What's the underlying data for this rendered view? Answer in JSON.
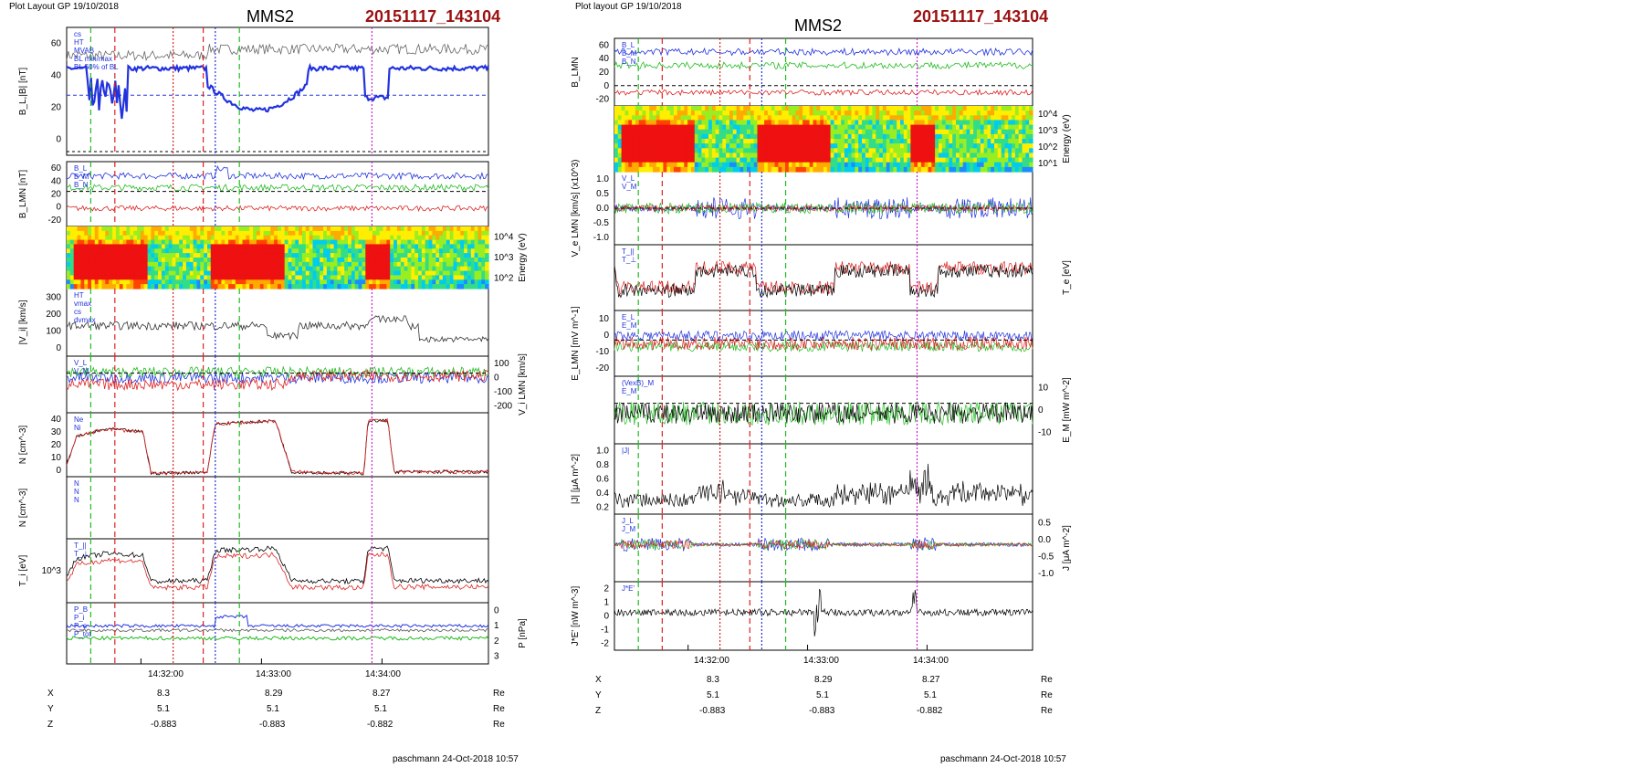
{
  "left_figure": {
    "layout_label": "Plot Layout GP 19/10/2018",
    "spacecraft": "MMS2",
    "run_id": "20151117_143104",
    "footer": "paschmann 24-Oct-2018 10:57",
    "time_ticks": [
      "14:32:00",
      "14:33:00",
      "14:34:00"
    ],
    "ephemeris": {
      "rows": [
        {
          "label": "X",
          "values": [
            "8.3",
            "8.29",
            "8.27"
          ],
          "unit": "Re"
        },
        {
          "label": "Y",
          "values": [
            "5.1",
            "5.1",
            "5.1"
          ],
          "unit": "Re"
        },
        {
          "label": "Z",
          "values": [
            "-0.883",
            "-0.883",
            "-0.882"
          ],
          "unit": "Re"
        }
      ]
    },
    "panels": [
      {
        "ylabel": "B_L,|B| [nT]",
        "ticks": [
          "0",
          "20",
          "40",
          "60"
        ],
        "legend": [
          "cs",
          "HT",
          "MVAB",
          "BL min/max",
          "BL 50% of BL"
        ]
      },
      {
        "ylabel": "B_LMN [nT]",
        "ticks": [
          "-20",
          "0",
          "20",
          "40",
          "60"
        ],
        "legend": [
          "B_L",
          "B_M",
          "B_N"
        ]
      },
      {
        "ylabel": "Energy (eV)",
        "ticks_right": [
          "10^4",
          "10^3",
          "10^2"
        ]
      },
      {
        "ylabel": "|V_i| [km/s]",
        "ticks": [
          "0",
          "100",
          "200",
          "300"
        ],
        "legend": [
          "HT",
          "vmax",
          "cs",
          "dvmax"
        ]
      },
      {
        "ylabel": "V_i LMN [km/s]",
        "ticks_right": [
          "100",
          "0",
          "-100",
          "-200"
        ],
        "legend": [
          "V_L",
          "V_M"
        ]
      },
      {
        "ylabel": "N [cm^-3]",
        "ticks": [
          "0",
          "10",
          "20",
          "30",
          "40"
        ],
        "legend": [
          "Ne",
          "Ni"
        ]
      },
      {
        "ylabel": "N [cm^-3]",
        "legend": [
          "N",
          "N",
          "N"
        ]
      },
      {
        "ylabel": "T_i [eV]",
        "ticks": [
          "10^3"
        ],
        "legend": [
          "T_||",
          "T_⊥"
        ]
      },
      {
        "ylabel": "P [nPa]",
        "ticks_right": [
          "0",
          "1",
          "2",
          "3"
        ],
        "legend": [
          "P_B",
          "P_i",
          "P_e",
          "P_tot"
        ]
      }
    ]
  },
  "right_figure": {
    "layout_label": "Plot layout GP 19/10/2018",
    "spacecraft": "MMS2",
    "run_id": "20151117_143104",
    "footer": "paschmann 24-Oct-2018 10:57",
    "time_ticks": [
      "14:32:00",
      "14:33:00",
      "14:34:00"
    ],
    "ephemeris": {
      "rows": [
        {
          "label": "X",
          "values": [
            "8.3",
            "8.29",
            "8.27"
          ],
          "unit": "Re"
        },
        {
          "label": "Y",
          "values": [
            "5.1",
            "5.1",
            "5.1"
          ],
          "unit": "Re"
        },
        {
          "label": "Z",
          "values": [
            "-0.883",
            "-0.883",
            "-0.882"
          ],
          "unit": "Re"
        }
      ]
    },
    "panels": [
      {
        "ylabel": "B_LMN",
        "ticks": [
          "-20",
          "0",
          "20",
          "40",
          "60"
        ],
        "legend": [
          "B_L",
          "B_M",
          "B_N"
        ]
      },
      {
        "ylabel": "Energy (eV)",
        "ticks_right": [
          "10^4",
          "10^3",
          "10^2",
          "10^1"
        ]
      },
      {
        "ylabel": "V_e LMN [km/s] (x10^3)",
        "ticks": [
          "-1.0",
          "-0.5",
          "0.0",
          "0.5",
          "1.0"
        ],
        "legend": [
          "V_L",
          "V_M"
        ]
      },
      {
        "ylabel": "T_e [eV]",
        "legend": [
          "T_||",
          "T_⊥"
        ]
      },
      {
        "ylabel": "E_LMN [mV m^-1]",
        "ticks": [
          "-20",
          "-10",
          "0",
          "10"
        ],
        "legend": [
          "E_L",
          "E_M"
        ]
      },
      {
        "ylabel": "E_M [mW m^-2]",
        "ticks_right": [
          "10",
          "0",
          "-10"
        ],
        "legend": [
          "(VexB)_M",
          "E_M"
        ]
      },
      {
        "ylabel": "|J| [μA m^-2]",
        "ticks": [
          "0.2",
          "0.4",
          "0.6",
          "0.8",
          "1.0"
        ],
        "legend": [
          "|J|"
        ]
      },
      {
        "ylabel": "J [μA m^-2]",
        "ticks_right": [
          "0.5",
          "0.0",
          "-0.5",
          "-1.0"
        ],
        "legend": [
          "J_L",
          "J_M"
        ]
      },
      {
        "ylabel": "J*E' [nW m^-3]",
        "ticks": [
          "-2",
          "-1",
          "0",
          "1",
          "2"
        ],
        "legend": [
          "J*E'"
        ]
      }
    ]
  },
  "chart_data": [
    {
      "type": "line",
      "title": "MMS2 20151117_143104",
      "time_ticks": [
        "14:32:00",
        "14:33:00",
        "14:34:00"
      ],
      "time_range_s": [
        0,
        210
      ],
      "tick_seconds": [
        37,
        97,
        157
      ],
      "series_colors": {
        "L": "#2233dd",
        "M": "#22bb22",
        "N": "#dd2222",
        "total": "#666666",
        "black": "#000000"
      },
      "markers": [
        {
          "t": 12,
          "color": "#22bb22",
          "style": "dash"
        },
        {
          "t": 24,
          "color": "#dd2222",
          "style": "dash"
        },
        {
          "t": 53,
          "color": "#dd2222",
          "style": "dot"
        },
        {
          "t": 68,
          "color": "#dd2222",
          "style": "dash"
        },
        {
          "t": 74,
          "color": "#2233dd",
          "style": "dot"
        },
        {
          "t": 86,
          "color": "#22bb22",
          "style": "dash"
        },
        {
          "t": 152,
          "color": "#cc22cc",
          "style": "dot"
        }
      ],
      "density_profile": {
        "t": [
          0,
          5,
          20,
          38,
          42,
          70,
          74,
          104,
          112,
          148,
          150,
          160,
          163,
          210
        ],
        "values": [
          8,
          25,
          30,
          28,
          2,
          3,
          33,
          35,
          3,
          2,
          35,
          35,
          3,
          3
        ]
      }
    }
  ]
}
